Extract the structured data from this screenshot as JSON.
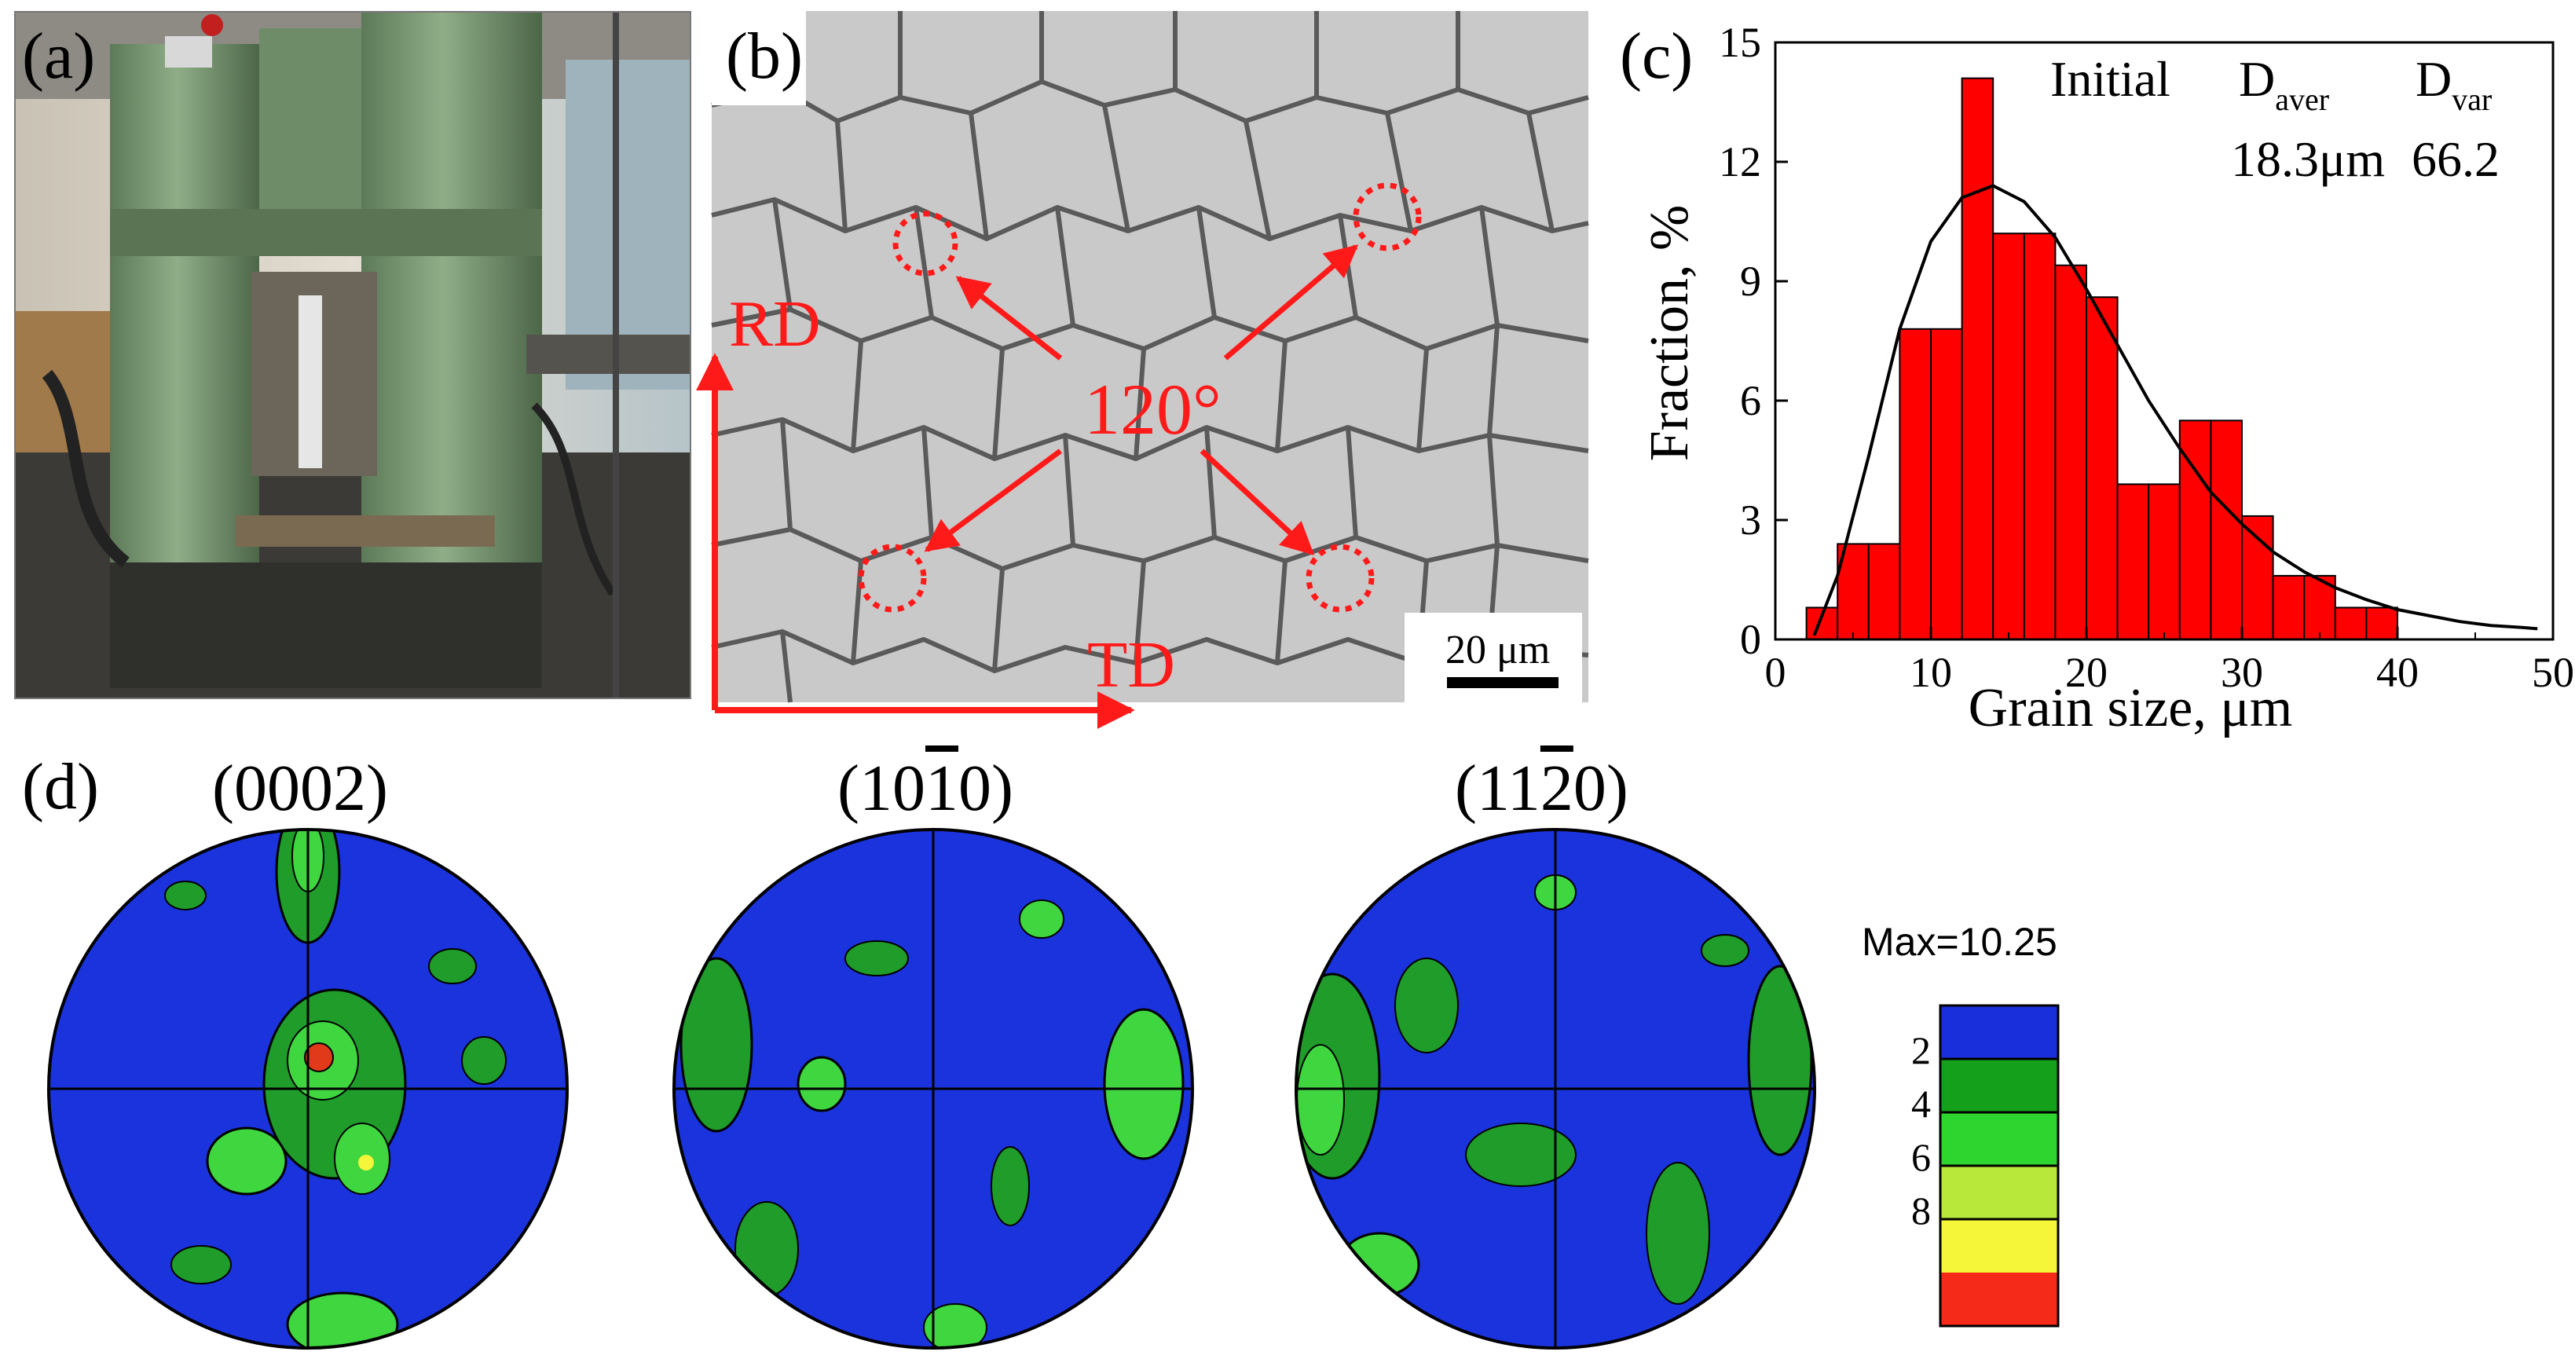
{
  "panels": {
    "a": {
      "label": "(a)"
    },
    "b": {
      "label": "(b)",
      "angle_label": "120°",
      "rd_label": "RD",
      "td_label": "TD",
      "scale_bar": "20 μm"
    },
    "c": {
      "label": "(c)"
    },
    "d": {
      "label": "(d)"
    }
  },
  "chart_data": {
    "type": "bar",
    "xlabel": "Grain size, μm",
    "ylabel": "Fraction, %",
    "xlim": [
      0,
      50
    ],
    "ylim": [
      0,
      15
    ],
    "xticks": [
      0,
      10,
      20,
      30,
      40,
      50
    ],
    "yticks": [
      0,
      3,
      6,
      9,
      12,
      15
    ],
    "bin_width": 2,
    "bins": [
      {
        "x": 3,
        "y": 0.8
      },
      {
        "x": 5,
        "y": 2.4
      },
      {
        "x": 7,
        "y": 2.4
      },
      {
        "x": 9,
        "y": 7.8
      },
      {
        "x": 11,
        "y": 7.8
      },
      {
        "x": 13,
        "y": 14.1
      },
      {
        "x": 15,
        "y": 10.2
      },
      {
        "x": 17,
        "y": 10.2
      },
      {
        "x": 19,
        "y": 9.4
      },
      {
        "x": 21,
        "y": 8.6
      },
      {
        "x": 23,
        "y": 3.9
      },
      {
        "x": 25,
        "y": 3.9
      },
      {
        "x": 27,
        "y": 5.5
      },
      {
        "x": 29,
        "y": 5.5
      },
      {
        "x": 31,
        "y": 3.1
      },
      {
        "x": 33,
        "y": 1.6
      },
      {
        "x": 35,
        "y": 1.6
      },
      {
        "x": 37,
        "y": 0.8
      },
      {
        "x": 39,
        "y": 0.8
      }
    ],
    "fit_curve": "lognormal",
    "fit_points": [
      [
        2.5,
        0.1
      ],
      [
        4,
        1.6
      ],
      [
        6,
        4.6
      ],
      [
        8,
        7.8
      ],
      [
        10,
        10.0
      ],
      [
        12,
        11.1
      ],
      [
        14,
        11.4
      ],
      [
        16,
        11.0
      ],
      [
        18,
        10.1
      ],
      [
        20,
        8.8
      ],
      [
        22,
        7.4
      ],
      [
        24,
        6.0
      ],
      [
        26,
        4.8
      ],
      [
        28,
        3.7
      ],
      [
        30,
        2.9
      ],
      [
        32,
        2.2
      ],
      [
        34,
        1.7
      ],
      [
        36,
        1.3
      ],
      [
        38,
        1.0
      ],
      [
        40,
        0.75
      ],
      [
        42,
        0.6
      ],
      [
        44,
        0.45
      ],
      [
        46,
        0.35
      ],
      [
        48,
        0.3
      ],
      [
        49,
        0.27
      ]
    ],
    "bar_color": "#ff0000",
    "annotation": {
      "label": "Initial",
      "d_aver_symbol": "D",
      "d_aver_sub": "aver",
      "d_aver_value": "18.3μm",
      "d_var_symbol": "D",
      "d_var_sub": "var",
      "d_var_value": "66.2"
    }
  },
  "pole_figures": [
    {
      "title_pre": "(000",
      "title_bar": "",
      "title_post": "2)",
      "plain": "(0002)"
    },
    {
      "title_pre": "(10",
      "title_bar": "1",
      "title_post": "0)"
    },
    {
      "title_pre": "(11",
      "title_bar": "2",
      "title_post": "0)"
    }
  ],
  "legend": {
    "max_label": "Max=10.25",
    "ticks": [
      "2",
      "4",
      "6",
      "8"
    ],
    "colors": [
      "#1a2fdc",
      "#15a01c",
      "#2fd52f",
      "#b8e83a",
      "#f5f53a",
      "#f52a18"
    ]
  }
}
